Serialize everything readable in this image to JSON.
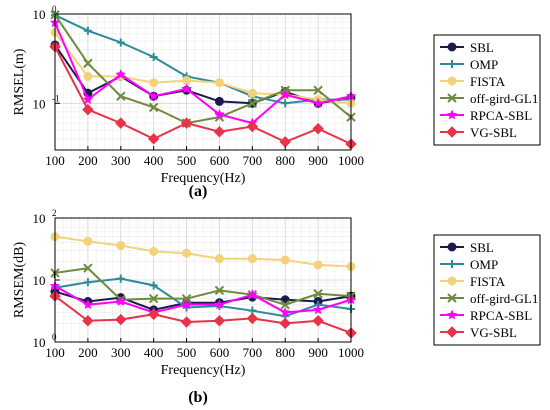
{
  "figure": {
    "panels": [
      {
        "label": "(a)"
      },
      {
        "label": "(b)"
      }
    ]
  },
  "chart_data": [
    {
      "type": "line",
      "xlabel": "Frequency(Hz)",
      "ylabel": "RMSEL(m)",
      "yscale": "log",
      "xlim": [
        100,
        1000
      ],
      "ylim": [
        0.03,
        1
      ],
      "grid": true,
      "legend": "right",
      "x": [
        100,
        200,
        300,
        400,
        500,
        600,
        700,
        800,
        900,
        1000
      ],
      "x_tick_labels": [
        "100",
        "200",
        "300",
        "400",
        "500",
        "600",
        "700",
        "800",
        "900",
        "1000"
      ],
      "y_ticks": [
        {
          "value": 1,
          "mantissa": "10",
          "exp": "0"
        },
        {
          "value": 0.1,
          "mantissa": "10",
          "exp": "-1"
        }
      ],
      "series": [
        {
          "name": "SBL",
          "color": "#1a1a4d",
          "marker": "circle",
          "values": [
            0.45,
            0.13,
            0.2,
            0.12,
            0.14,
            0.105,
            0.1,
            0.135,
            0.1,
            0.115
          ]
        },
        {
          "name": "OMP",
          "color": "#2e8b9a",
          "marker": "plus",
          "values": [
            0.97,
            0.65,
            0.48,
            0.33,
            0.2,
            0.17,
            0.12,
            0.1,
            0.11,
            0.11
          ]
        },
        {
          "name": "FISTA",
          "color": "#f4d27a",
          "marker": "circle",
          "values": [
            0.62,
            0.2,
            0.2,
            0.17,
            0.18,
            0.17,
            0.13,
            0.125,
            0.11,
            0.1
          ]
        },
        {
          "name": "off-gird-GL1",
          "color": "#6e8b3d",
          "marker": "x",
          "values": [
            0.98,
            0.28,
            0.12,
            0.09,
            0.06,
            0.07,
            0.1,
            0.14,
            0.14,
            0.07
          ]
        },
        {
          "name": "RPCA-SBL",
          "color": "#ff00ff",
          "marker": "star",
          "values": [
            0.8,
            0.11,
            0.21,
            0.12,
            0.145,
            0.075,
            0.06,
            0.125,
            0.1,
            0.12
          ]
        },
        {
          "name": "VG-SBL",
          "color": "#e8334a",
          "marker": "diamond",
          "values": [
            0.43,
            0.085,
            0.06,
            0.04,
            0.06,
            0.048,
            0.055,
            0.037,
            0.052,
            0.035
          ]
        }
      ]
    },
    {
      "type": "line",
      "xlabel": "Frequency(Hz)",
      "ylabel": "RMSEM(dB)",
      "yscale": "log",
      "xlim": [
        100,
        1000
      ],
      "ylim": [
        1,
        100
      ],
      "grid": true,
      "legend": "right",
      "x": [
        100,
        200,
        300,
        400,
        500,
        600,
        700,
        800,
        900,
        1000
      ],
      "x_tick_labels": [
        "100",
        "200",
        "300",
        "400",
        "500",
        "600",
        "700",
        "800",
        "900",
        "1000"
      ],
      "y_ticks": [
        {
          "value": 100,
          "mantissa": "10",
          "exp": "2"
        },
        {
          "value": 10,
          "mantissa": "10",
          "exp": "1"
        },
        {
          "value": 1,
          "mantissa": "10",
          "exp": "0"
        }
      ],
      "series": [
        {
          "name": "SBL",
          "color": "#1a1a4d",
          "marker": "circle",
          "values": [
            6.5,
            4.5,
            5.2,
            3.3,
            4.3,
            4.3,
            5.3,
            4.8,
            4.5,
            5.5
          ]
        },
        {
          "name": "OMP",
          "color": "#2e8b9a",
          "marker": "plus",
          "values": [
            7.5,
            9.2,
            10.5,
            8.2,
            3.6,
            3.8,
            3.2,
            2.6,
            4.0,
            3.4
          ]
        },
        {
          "name": "FISTA",
          "color": "#f4d27a",
          "marker": "circle",
          "values": [
            50,
            42,
            36,
            29,
            27,
            22,
            22,
            21,
            17.5,
            16.5
          ]
        },
        {
          "name": "off-gird-GL1",
          "color": "#6e8b3d",
          "marker": "x",
          "values": [
            13,
            15.5,
            4.8,
            5.0,
            5.0,
            6.8,
            5.8,
            4.0,
            6.0,
            5.5
          ]
        },
        {
          "name": "RPCA-SBL",
          "color": "#ff00ff",
          "marker": "star",
          "values": [
            8.0,
            4.0,
            4.5,
            3.0,
            4.0,
            4.0,
            5.8,
            3.0,
            3.3,
            4.8
          ]
        },
        {
          "name": "VG-SBL",
          "color": "#e8334a",
          "marker": "diamond",
          "values": [
            5.5,
            2.2,
            2.3,
            2.8,
            2.1,
            2.2,
            2.4,
            2.0,
            2.2,
            1.4
          ]
        }
      ]
    }
  ]
}
